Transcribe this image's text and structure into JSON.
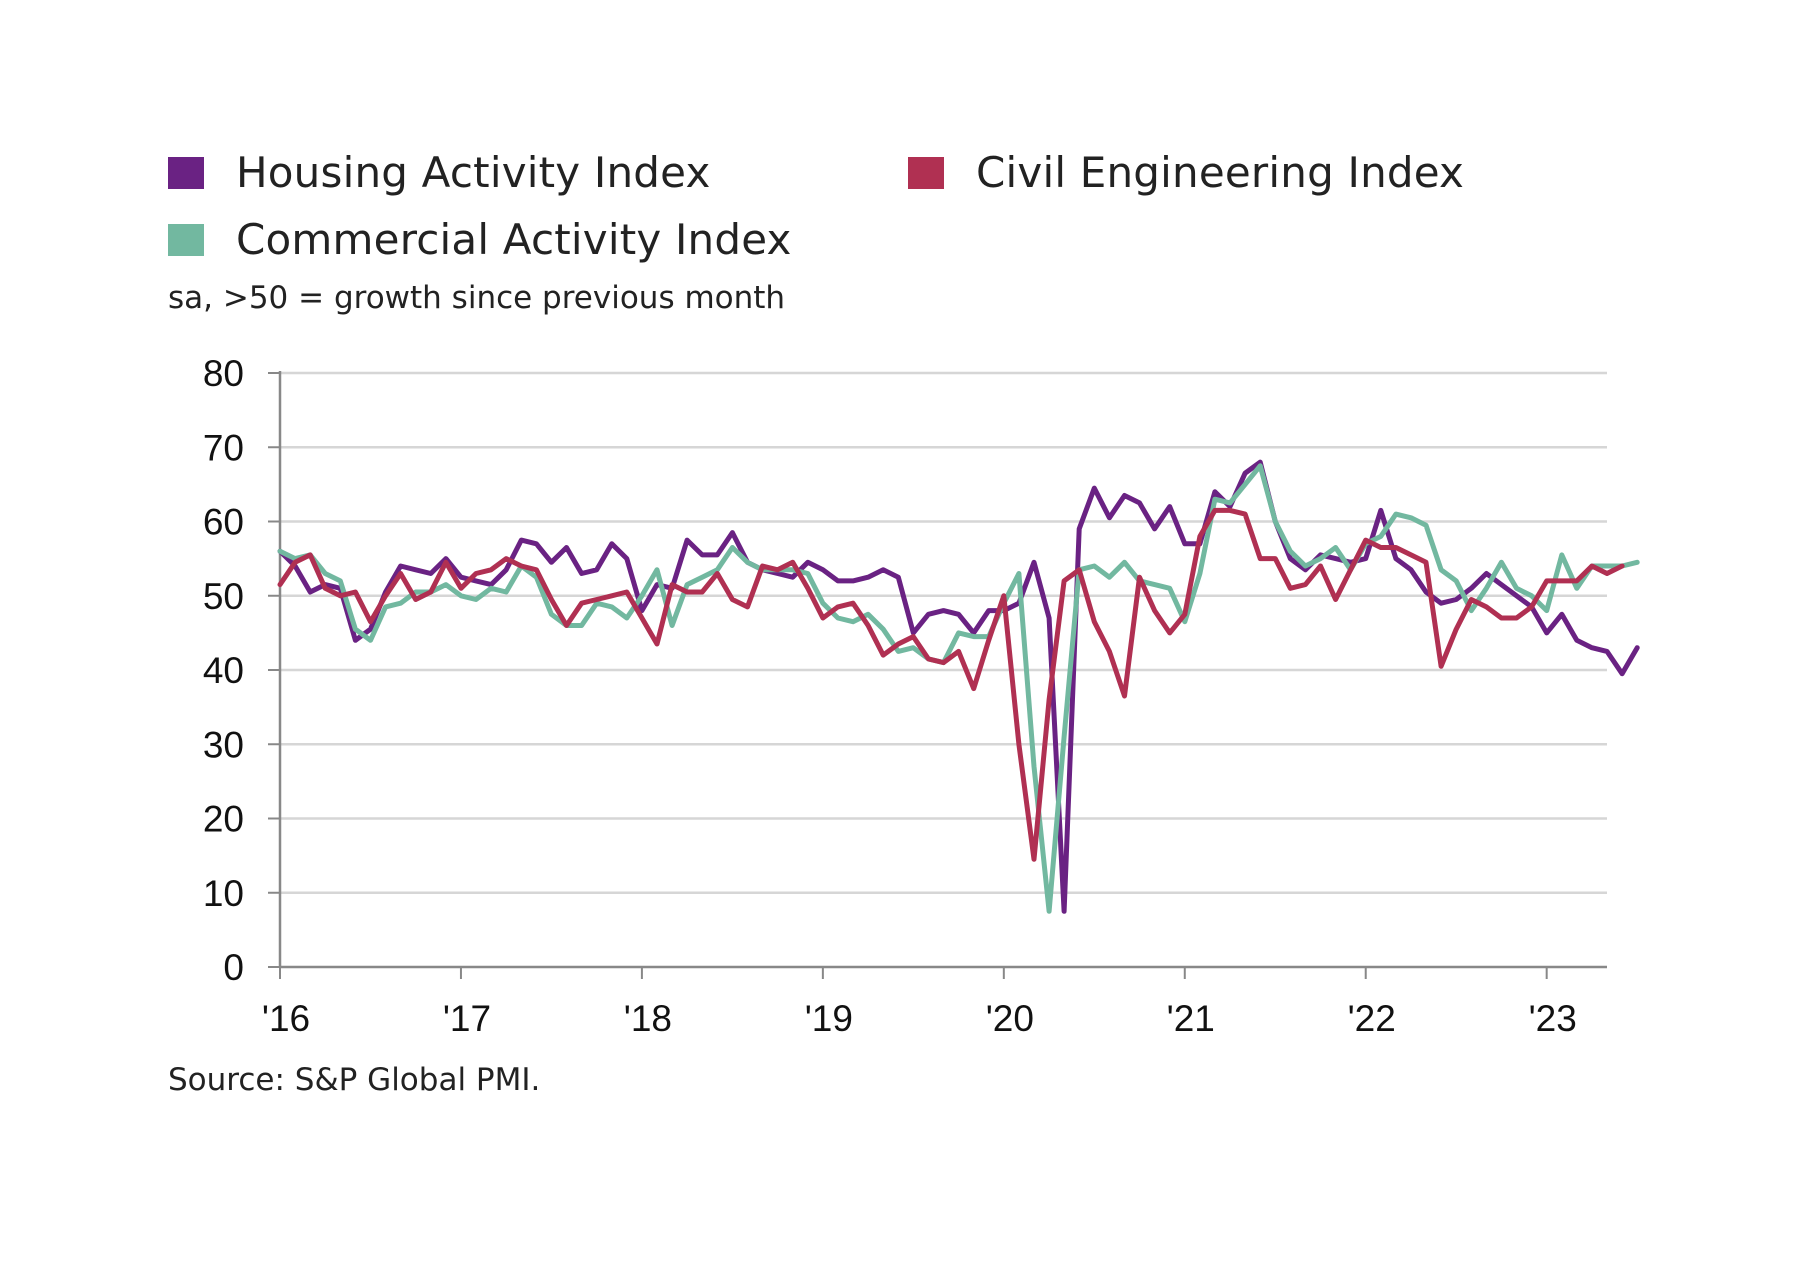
{
  "legend": {
    "housing": "Housing Activity Index",
    "civil": "Civil Engineering Index",
    "commercial": "Commercial Activity Index"
  },
  "subtitle": "sa, >50 = growth since previous month",
  "source": "Source: S&P Global PMI.",
  "colors": {
    "housing": "#6a2283",
    "civil": "#b03052",
    "commercial": "#72b8a0",
    "grid": "#d6d6d6",
    "axis": "#888888"
  },
  "chart_data": {
    "type": "line",
    "title": "",
    "xlabel": "",
    "ylabel": "",
    "ylim": [
      0,
      80
    ],
    "yticks": [
      0,
      10,
      20,
      30,
      40,
      50,
      60,
      70,
      80
    ],
    "x_tick_labels": [
      "'16",
      "'17",
      "'18",
      "'19",
      "'20",
      "'21",
      "'22",
      "'23"
    ],
    "x_start": "2016-01",
    "grid": "horizontal",
    "series": [
      {
        "name": "Housing Activity Index",
        "color": "#6a2283",
        "values": [
          56,
          54,
          50.5,
          51.5,
          51,
          44,
          45.5,
          50.5,
          54,
          53.5,
          53,
          55,
          52.5,
          52,
          51.5,
          53.5,
          57.5,
          57,
          54.5,
          56.5,
          53,
          53.5,
          57,
          55,
          48,
          51.5,
          51,
          57.5,
          55.5,
          55.5,
          58.5,
          54.5,
          53.5,
          53,
          52.5,
          54.5,
          53.5,
          52,
          52,
          52.5,
          53.5,
          52.5,
          45,
          47.5,
          48,
          47.5,
          45,
          48,
          48,
          49,
          54.5,
          47,
          7.5,
          59,
          64.5,
          60.5,
          63.5,
          62.5,
          59,
          62,
          57,
          57,
          64,
          62,
          66.5,
          68,
          60,
          55,
          53.5,
          55.5,
          55,
          54.5,
          55,
          61.5,
          55,
          53.5,
          50.5,
          49,
          49.5,
          51,
          53,
          51.5,
          50,
          48.5,
          45,
          47.5,
          44,
          43,
          42.5,
          39.5,
          43
        ]
      },
      {
        "name": "Commercial Activity Index",
        "color": "#72b8a0",
        "values": [
          56,
          55,
          55.5,
          53,
          52,
          45.5,
          44,
          48.5,
          49,
          50.5,
          50.5,
          51.5,
          50,
          49.5,
          51,
          50.5,
          54,
          52.5,
          47.5,
          46,
          46,
          49,
          48.5,
          47,
          50,
          53.5,
          46,
          51.5,
          52.5,
          53.5,
          56.5,
          54.5,
          53.5,
          53.5,
          53.5,
          53,
          49,
          47,
          46.5,
          47.5,
          45.5,
          42.5,
          43,
          41.5,
          41,
          45,
          44.5,
          44.5,
          49,
          53,
          27,
          7.5,
          31,
          53.5,
          54,
          52.5,
          54.5,
          52,
          51.5,
          51,
          46.5,
          53,
          63,
          62.5,
          65,
          67.5,
          60,
          56,
          54,
          55,
          56.5,
          53.5,
          57,
          58,
          61,
          60.5,
          59.5,
          53.5,
          52,
          48,
          51,
          54.5,
          51,
          50,
          48,
          55.5,
          51,
          54,
          54,
          54,
          54.5
        ]
      },
      {
        "name": "Civil Engineering Index",
        "color": "#b03052",
        "values": [
          51.5,
          54.5,
          55.5,
          51,
          50,
          50.5,
          46.5,
          50,
          53,
          49.5,
          50.5,
          54.5,
          51,
          53,
          53.5,
          55,
          54,
          53.5,
          49.5,
          46,
          49,
          49.5,
          50,
          50.5,
          47,
          43.5,
          51.5,
          50.5,
          50.5,
          53,
          49.5,
          48.5,
          54,
          53.5,
          54.5,
          51,
          47,
          48.5,
          49,
          46,
          42,
          43.5,
          44.5,
          41.5,
          41,
          42.5,
          37.5,
          44,
          50,
          30,
          14.5,
          36,
          52,
          53.5,
          46.5,
          42.5,
          36.5,
          52.5,
          48,
          45,
          47.5,
          58,
          61.5,
          61.5,
          61,
          55,
          55,
          51,
          51.5,
          54,
          49.5,
          53.5,
          57.5,
          56.5,
          56.5,
          55.5,
          54.5,
          40.5,
          45.5,
          49.5,
          48.5,
          47,
          47,
          48.5,
          52,
          52,
          52,
          54,
          53,
          54
        ]
      }
    ]
  }
}
